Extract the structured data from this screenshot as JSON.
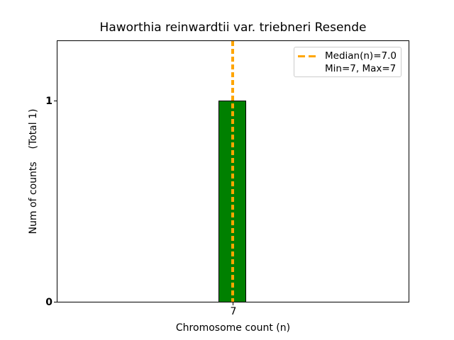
{
  "chart_data": {
    "type": "bar",
    "title": "Haworthia reinwardtii var. triebneri Resende",
    "xlabel": "Chromosome count (n)",
    "ylabel": "Num of counts    (Total 1)",
    "x": [
      7
    ],
    "values": [
      1
    ],
    "total_counts": 1,
    "x_tick_labels": [
      "7"
    ],
    "y_tick_labels": [
      "0",
      "1"
    ],
    "xlim": [
      1.9,
      12.1
    ],
    "ylim": [
      0,
      1.3
    ],
    "grid": false,
    "bar_width": 0.8,
    "bar_color": "#008000",
    "bar_edge_color": "#000000",
    "median_line": {
      "x": 7.0,
      "style": "dashed",
      "color": "#FFA500"
    },
    "stats": {
      "median": 7.0,
      "min": 7,
      "max": 7
    },
    "legend": {
      "position": "upper right",
      "border_color": "#cccccc",
      "entries": [
        {
          "label": "Median(n)=7.0",
          "marker": "dashed-line",
          "color": "#FFA500"
        },
        {
          "label": "Min=7, Max=7",
          "marker": "none",
          "color": null
        }
      ]
    }
  }
}
